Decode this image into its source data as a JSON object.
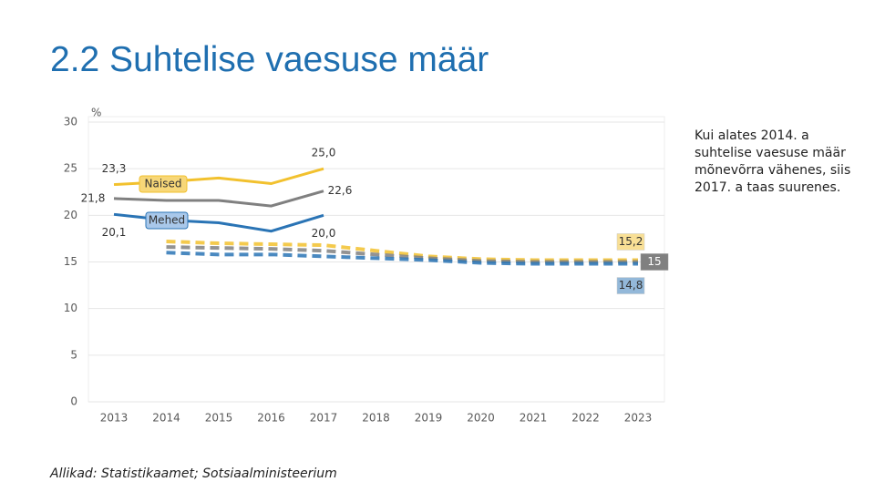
{
  "title": "2.2 Suhtelise vaesuse määr",
  "note": "Kui alates 2014. a suhtelise vaesuse määr mõnevõrra vähenes, siis 2017. a taas suurenes.",
  "source": "Allikad: Statistikaamet; Sotsiaalministeerium",
  "chart_data": {
    "type": "line",
    "y_unit": "%",
    "categories": [
      "2013",
      "2014",
      "2015",
      "2016",
      "2017",
      "2018",
      "2019",
      "2020",
      "2021",
      "2022",
      "2023"
    ],
    "ylim": [
      0,
      30
    ],
    "yticks": [
      0,
      5,
      10,
      15,
      20,
      25,
      30
    ],
    "grid": true,
    "series": [
      {
        "name": "Naised",
        "color": "#f2c12e",
        "values": [
          23.3,
          23.6,
          24.0,
          23.4,
          25.0,
          null,
          null,
          null,
          null,
          null,
          null
        ],
        "value_labels": [
          "23,3",
          null,
          null,
          null,
          "25,0",
          null,
          null,
          null,
          null,
          null,
          null
        ]
      },
      {
        "color": "#808080",
        "values": [
          21.8,
          21.6,
          21.6,
          21.0,
          22.6,
          null,
          null,
          null,
          null,
          null,
          null
        ],
        "value_labels": [
          "21,8",
          null,
          null,
          null,
          "22,6",
          null,
          null,
          null,
          null,
          null,
          null
        ]
      },
      {
        "name": "Mehed",
        "color": "#2a74b5",
        "values": [
          20.1,
          19.5,
          19.2,
          18.3,
          20.0,
          null,
          null,
          null,
          null,
          null,
          null
        ],
        "value_labels": [
          "20,1",
          null,
          null,
          null,
          "20,0",
          null,
          null,
          null,
          null,
          null,
          null
        ]
      },
      {
        "color": "#f2c12e",
        "dashed": true,
        "values": [
          null,
          17.2,
          17.0,
          16.9,
          16.8,
          16.2,
          15.6,
          15.3,
          15.2,
          15.2,
          15.2
        ],
        "value_labels": [
          null,
          null,
          null,
          null,
          null,
          null,
          null,
          null,
          null,
          null,
          "15,2"
        ]
      },
      {
        "color": "#808080",
        "dashed": true,
        "values": [
          null,
          16.6,
          16.5,
          16.4,
          16.2,
          15.8,
          15.4,
          15.1,
          15.0,
          15.0,
          15.0
        ],
        "value_labels": [
          null,
          null,
          null,
          null,
          null,
          null,
          null,
          null,
          null,
          null,
          "15"
        ]
      },
      {
        "color": "#2a74b5",
        "dashed": true,
        "values": [
          null,
          16.0,
          15.8,
          15.8,
          15.6,
          15.4,
          15.2,
          14.9,
          14.8,
          14.8,
          14.8
        ],
        "value_labels": [
          null,
          null,
          null,
          null,
          null,
          null,
          null,
          null,
          null,
          null,
          "14,8"
        ]
      }
    ]
  }
}
